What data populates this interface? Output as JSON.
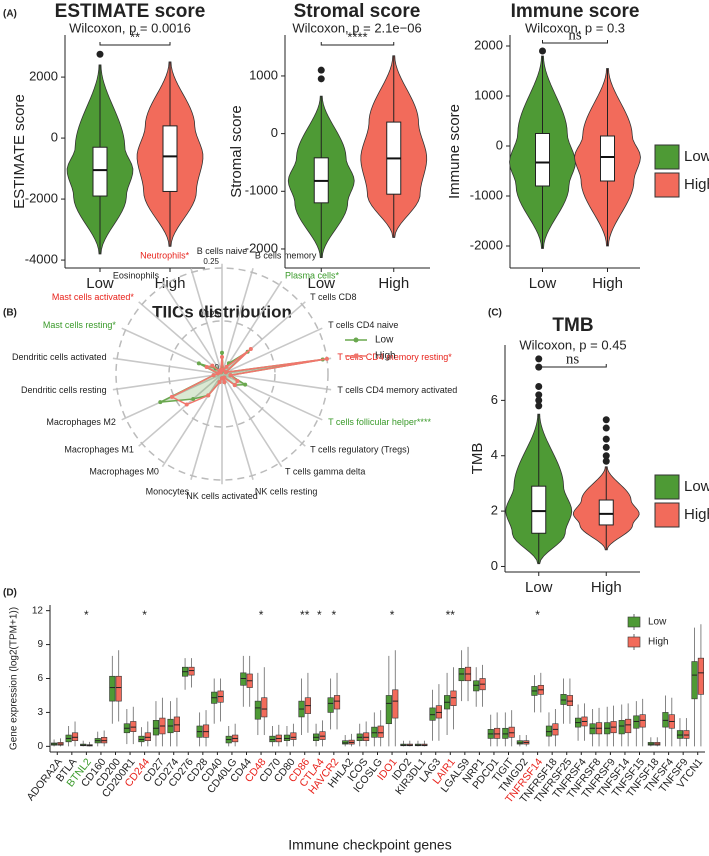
{
  "chart_data": [
    {
      "type": "violin",
      "panel_label": "(A)",
      "title": "ESTIMATE score",
      "subtitle": "Wilcoxon, p = 0.0016",
      "ylabel": "ESTIMATE score",
      "categories": [
        "Low",
        "High"
      ],
      "series": [
        {
          "name": "Low",
          "color": "#4e9a35",
          "values": [
            -3800,
            -1900,
            -1050,
            -300,
            2400
          ],
          "outliers": [
            2750
          ]
        },
        {
          "name": "High",
          "color": "#f26b5b",
          "values": [
            -3550,
            -1750,
            -600,
            400,
            2500
          ]
        }
      ],
      "significance": "**",
      "ylim": [
        -4260,
        3380
      ],
      "yticks": [
        -4000,
        -2000,
        0,
        2000
      ]
    },
    {
      "type": "violin",
      "title": "Stromal score",
      "subtitle": "Wilcoxon, p = 2.1e−06",
      "ylabel": "Stromal score",
      "categories": [
        "Low",
        "High"
      ],
      "series": [
        {
          "name": "Low",
          "color": "#4e9a35",
          "values": [
            -2150,
            -1200,
            -820,
            -420,
            650
          ],
          "outliers": [
            950,
            1100
          ]
        },
        {
          "name": "High",
          "color": "#f26b5b",
          "values": [
            -1800,
            -1050,
            -430,
            200,
            1350
          ]
        }
      ],
      "significance": "****",
      "ylim": [
        -2330,
        1710
      ],
      "yticks": [
        -2000,
        -1000,
        0,
        1000
      ]
    },
    {
      "type": "violin",
      "title": "Immune score",
      "subtitle": "Wilcoxon, p = 0.3",
      "ylabel": "Immune score",
      "categories": [
        "Low",
        "High"
      ],
      "series": [
        {
          "name": "Low",
          "color": "#4e9a35",
          "values": [
            -2050,
            -800,
            -330,
            250,
            1800
          ],
          "outliers": [
            1900
          ]
        },
        {
          "name": "High",
          "color": "#f26b5b",
          "values": [
            -2000,
            -700,
            -220,
            200,
            1550
          ]
        }
      ],
      "significance": "ns",
      "ylim": [
        -2440,
        2220
      ],
      "yticks": [
        -2000,
        -1000,
        0,
        1000,
        2000
      ],
      "legend": "right"
    },
    {
      "type": "radar",
      "panel_label": "(B)",
      "title": "TIICs distribution",
      "categories": [
        "B cells naive",
        "B cells memory",
        "Plasma cells*",
        "T cells CD8",
        "T cells CD4 naive",
        "T cells CD4 memory resting*",
        "T cells CD4 memory activated",
        "T cells follicular helper****",
        "T cells regulatory (Tregs)",
        "T cells gamma delta",
        "NK cells resting",
        "NK cells activated",
        "Monocytes",
        "Macrophages M0",
        "Macrophages M1",
        "Macrophages M2",
        "Dendritic cells resting",
        "Dendritic cells activated",
        "Mast cells resting*",
        "Mast cells activated*",
        "Eosinophils",
        "Neutrophils*"
      ],
      "label_colors": [
        "#222",
        "#222",
        "#3a9a2a",
        "#222",
        "#222",
        "#e8231c",
        "#222",
        "#3a9a2a",
        "#222",
        "#222",
        "#222",
        "#222",
        "#222",
        "#222",
        "#222",
        "#222",
        "#222",
        "#222",
        "#3a9a2a",
        "#e8231c",
        "#222",
        "#e8231c"
      ],
      "series": [
        {
          "name": "Low",
          "color": "#6aa84f",
          "values": [
            0.05,
            0.01,
            0.03,
            0.08,
            0.01,
            0.24,
            0.02,
            0.06,
            0.04,
            0.01,
            0.02,
            0.01,
            0.02,
            0.06,
            0.09,
            0.16,
            0.02,
            0.01,
            0.06,
            0.02,
            0.005,
            0.005
          ]
        },
        {
          "name": "High",
          "color": "#f0766c",
          "values": [
            0.04,
            0.01,
            0.02,
            0.09,
            0.01,
            0.25,
            0.02,
            0.04,
            0.04,
            0.01,
            0.02,
            0.01,
            0.02,
            0.06,
            0.11,
            0.13,
            0.02,
            0.01,
            0.04,
            0.03,
            0.005,
            0.01
          ]
        }
      ],
      "rlim": [
        0,
        0.25
      ],
      "rticks": [
        0,
        0.125,
        0.25
      ],
      "legend": "top-right"
    },
    {
      "type": "violin",
      "panel_label": "(C)",
      "title": "TMB",
      "subtitle": "Wilcoxon, p = 0.45",
      "ylabel": "TMB",
      "categories": [
        "Low",
        "High"
      ],
      "series": [
        {
          "name": "Low",
          "color": "#4e9a35",
          "values": [
            0.1,
            1.2,
            2.0,
            2.9,
            5.5
          ],
          "outliers": [
            5.8,
            6.0,
            6.2,
            6.5,
            7.2,
            7.5
          ]
        },
        {
          "name": "High",
          "color": "#f26b5b",
          "values": [
            0.6,
            1.5,
            1.9,
            2.4,
            3.6
          ],
          "outliers": [
            3.8,
            4.0,
            4.3,
            4.6,
            5.0,
            5.3
          ]
        }
      ],
      "significance": "ns",
      "ylim": [
        -0.2,
        8.0
      ],
      "yticks": [
        0,
        2,
        4,
        6
      ],
      "legend": "right"
    },
    {
      "type": "box",
      "panel_label": "(D)",
      "ylabel": "Gene expression (log2(TPM+1))",
      "xlabel": "Immune checkpoint genes",
      "categories": [
        "ADORA2A",
        "BTLA",
        "BTNL2",
        "CD160",
        "CD200",
        "CD200R1",
        "CD244",
        "CD27",
        "CD274",
        "CD276",
        "CD28",
        "CD40",
        "CD40LG",
        "CD44",
        "CD48",
        "CD70",
        "CD80",
        "CD86",
        "CTLA4",
        "HAVCR2",
        "HHLA2",
        "ICOS",
        "ICOSLG",
        "IDO1",
        "IDO2",
        "KIR3DL1",
        "LAG3",
        "LAIR1",
        "LGALS9",
        "NRP1",
        "PDCD1",
        "TIGIT",
        "TMIGD2",
        "TNFRSF14",
        "TNFRSF18",
        "TNFRSF25",
        "TNFRSF4",
        "TNFRSF8",
        "TNFRSF9",
        "TNFSF14",
        "TNFSF15",
        "TNFSF18",
        "TNFSF4",
        "TNFSF9",
        "VTCN1"
      ],
      "label_colors": [
        "#222",
        "#222",
        "#3a9a2a",
        "#222",
        "#222",
        "#222",
        "#e8231c",
        "#222",
        "#222",
        "#222",
        "#222",
        "#222",
        "#222",
        "#222",
        "#e8231c",
        "#222",
        "#222",
        "#e8231c",
        "#e8231c",
        "#e8231c",
        "#222",
        "#222",
        "#222",
        "#e8231c",
        "#222",
        "#222",
        "#222",
        "#e8231c",
        "#222",
        "#222",
        "#222",
        "#222",
        "#222",
        "#e8231c",
        "#222",
        "#222",
        "#222",
        "#222",
        "#222",
        "#222",
        "#222",
        "#222",
        "#222",
        "#222",
        "#222"
      ],
      "significance": [
        null,
        null,
        "*",
        null,
        null,
        null,
        "*",
        null,
        null,
        null,
        null,
        null,
        null,
        null,
        "*",
        null,
        null,
        "**",
        "*",
        "*",
        null,
        null,
        null,
        "*",
        null,
        null,
        null,
        "**",
        null,
        null,
        null,
        null,
        null,
        "*",
        null,
        null,
        null,
        null,
        null,
        null,
        null,
        null,
        null,
        null,
        null
      ],
      "series": [
        {
          "name": "Low",
          "color": "#4e9a35",
          "values": [
            [
              0,
              0.1,
              0.2,
              0.3,
              0.6
            ],
            [
              0,
              0.4,
              0.7,
              1.0,
              1.8
            ],
            [
              0,
              0.05,
              0.1,
              0.2,
              0.5
            ],
            [
              0,
              0.3,
              0.5,
              0.7,
              1.3
            ],
            [
              2,
              4,
              5.2,
              6.2,
              8
            ],
            [
              0.2,
              1.2,
              1.6,
              2,
              3.3
            ],
            [
              0,
              0.4,
              0.6,
              0.9,
              1.7
            ],
            [
              0,
              1,
              1.6,
              2.3,
              4
            ],
            [
              0,
              1.2,
              1.8,
              2.4,
              4
            ],
            [
              5,
              6.2,
              6.6,
              7,
              7.8
            ],
            [
              0,
              0.8,
              1.3,
              1.8,
              3
            ],
            [
              2,
              3.8,
              4.3,
              4.8,
              6
            ],
            [
              0,
              0.3,
              0.6,
              0.9,
              1.8
            ],
            [
              3.5,
              5.4,
              6,
              6.5,
              8
            ],
            [
              1,
              2.4,
              3.4,
              4,
              6.5
            ],
            [
              0,
              0.4,
              0.6,
              0.9,
              1.8
            ],
            [
              0,
              0.5,
              0.7,
              1,
              1.8
            ],
            [
              1,
              2.6,
              3.3,
              4,
              6
            ],
            [
              0,
              0.5,
              0.8,
              1.1,
              2
            ],
            [
              1.5,
              3,
              3.8,
              4.3,
              6
            ],
            [
              0,
              0.2,
              0.3,
              0.5,
              1
            ],
            [
              0,
              0.5,
              0.8,
              1.1,
              2
            ],
            [
              0,
              0.8,
              1.2,
              1.7,
              3
            ],
            [
              0,
              2,
              3.8,
              4.5,
              8
            ],
            [
              0,
              0.05,
              0.1,
              0.2,
              0.5
            ],
            [
              0,
              0.05,
              0.1,
              0.2,
              0.5
            ],
            [
              0.5,
              2.3,
              2.8,
              3.4,
              5
            ],
            [
              1,
              3.3,
              3.9,
              4.5,
              6.5
            ],
            [
              4,
              5.8,
              6.4,
              6.9,
              8.5
            ],
            [
              3.5,
              4.9,
              5.4,
              5.8,
              7
            ],
            [
              0,
              0.7,
              1.1,
              1.5,
              2.8
            ],
            [
              0,
              0.7,
              1.1,
              1.6,
              3
            ],
            [
              0,
              0.2,
              0.3,
              0.5,
              1
            ],
            [
              3,
              4.5,
              4.9,
              5.3,
              6.3
            ],
            [
              0,
              0.9,
              1.3,
              1.8,
              3
            ],
            [
              2,
              3.7,
              4.1,
              4.6,
              6
            ],
            [
              0.5,
              1.7,
              2.1,
              2.5,
              3.7
            ],
            [
              0,
              1.1,
              1.6,
              2,
              3.3
            ],
            [
              0,
              1.1,
              1.6,
              2.1,
              3.5
            ],
            [
              0,
              1.1,
              1.8,
              2.3,
              3.7
            ],
            [
              0,
              1.6,
              2.2,
              2.7,
              4
            ],
            [
              0,
              0.1,
              0.2,
              0.35,
              0.8
            ],
            [
              0,
              1.7,
              2.3,
              3,
              4.5
            ],
            [
              0,
              0.7,
              1,
              1.4,
              2.5
            ],
            [
              0,
              4.2,
              6.3,
              7.5,
              10.5
            ]
          ]
        },
        {
          "name": "High",
          "color": "#f26b5b",
          "values": [
            [
              0,
              0.1,
              0.2,
              0.35,
              0.7
            ],
            [
              0,
              0.5,
              0.8,
              1.2,
              2.2
            ],
            [
              0,
              0.03,
              0.08,
              0.15,
              0.4
            ],
            [
              0,
              0.3,
              0.5,
              0.8,
              1.4
            ],
            [
              2.2,
              4,
              5.2,
              6.2,
              8.5
            ],
            [
              0.2,
              1.3,
              1.7,
              2.2,
              3.5
            ],
            [
              0,
              0.5,
              0.8,
              1.2,
              2.2
            ],
            [
              0,
              1.1,
              1.8,
              2.5,
              4.3
            ],
            [
              0,
              1.3,
              1.9,
              2.6,
              4.3
            ],
            [
              5.2,
              6.3,
              6.7,
              7,
              7.8
            ],
            [
              0,
              0.8,
              1.3,
              1.9,
              3.2
            ],
            [
              2.2,
              3.9,
              4.4,
              4.9,
              6
            ],
            [
              0,
              0.4,
              0.7,
              1,
              2
            ],
            [
              3.5,
              5.2,
              5.8,
              6.4,
              8
            ],
            [
              1,
              2.6,
              3.3,
              4.3,
              7
            ],
            [
              0,
              0.4,
              0.7,
              1,
              1.9
            ],
            [
              0,
              0.6,
              0.8,
              1.2,
              2
            ],
            [
              1.2,
              2.9,
              3.6,
              4.3,
              6.5
            ],
            [
              0,
              0.6,
              0.9,
              1.3,
              2.3
            ],
            [
              1.5,
              3.3,
              4,
              4.5,
              6.5
            ],
            [
              0,
              0.2,
              0.35,
              0.55,
              1.1
            ],
            [
              0,
              0.5,
              0.8,
              1.2,
              2.2
            ],
            [
              0,
              0.8,
              1.2,
              1.8,
              3.2
            ],
            [
              0,
              2.5,
              4,
              5,
              8.5
            ],
            [
              0,
              0.05,
              0.1,
              0.2,
              0.5
            ],
            [
              0,
              0.05,
              0.1,
              0.2,
              0.5
            ],
            [
              0.5,
              2.5,
              3,
              3.6,
              5.5
            ],
            [
              1.5,
              3.6,
              4.3,
              4.9,
              7
            ],
            [
              4,
              5.8,
              6.4,
              7,
              8.8
            ],
            [
              3.5,
              5,
              5.5,
              6,
              7.2
            ],
            [
              0,
              0.7,
              1.1,
              1.6,
              3
            ],
            [
              0,
              0.8,
              1.2,
              1.7,
              3.2
            ],
            [
              0,
              0.2,
              0.35,
              0.5,
              1
            ],
            [
              3,
              4.6,
              5,
              5.4,
              6.5
            ],
            [
              0,
              1,
              1.5,
              2,
              3.3
            ],
            [
              2,
              3.6,
              4,
              4.5,
              6
            ],
            [
              0.5,
              1.8,
              2.2,
              2.6,
              3.8
            ],
            [
              0,
              1.1,
              1.6,
              2.1,
              3.4
            ],
            [
              0,
              1.2,
              1.7,
              2.2,
              3.6
            ],
            [
              0,
              1.2,
              1.9,
              2.4,
              3.8
            ],
            [
              0,
              1.7,
              2.3,
              2.8,
              4.2
            ],
            [
              0,
              0.1,
              0.2,
              0.35,
              0.8
            ],
            [
              0,
              1.6,
              2.2,
              2.8,
              4.3
            ],
            [
              0,
              0.7,
              1,
              1.4,
              2.5
            ],
            [
              0,
              4.6,
              6.5,
              7.8,
              10.8
            ]
          ]
        }
      ],
      "ylim": [
        -0.5,
        12.5
      ],
      "yticks": [
        0,
        3,
        6,
        9,
        12
      ],
      "legend": "top-right"
    }
  ]
}
